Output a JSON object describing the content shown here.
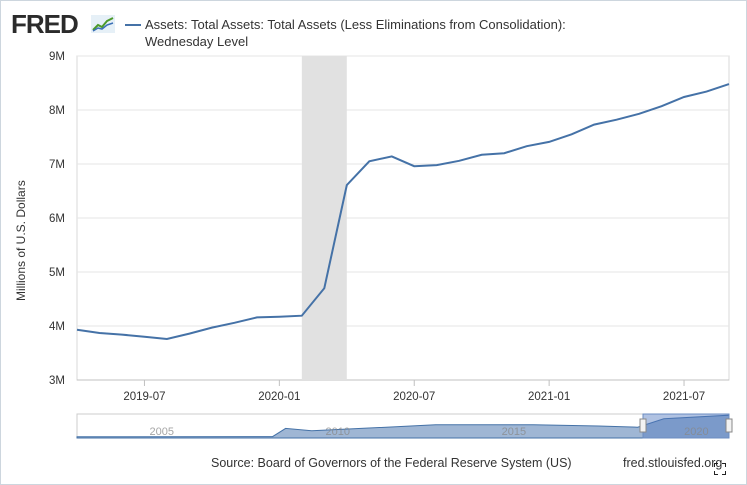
{
  "header": {
    "logo_text": "FRED",
    "series_title": "Assets: Total Assets: Total Assets (Less Eliminations from Consolidation): Wednesday Level"
  },
  "footer": {
    "source": "Source: Board of Governors of the Federal Reserve System (US)",
    "credit": "fred.stlouisfed.org"
  },
  "chart_data": {
    "type": "line",
    "title": "",
    "ylabel": "Millions of U.S. Dollars",
    "xlabel": "",
    "ylim": [
      3,
      9
    ],
    "y_unit": "M",
    "yticks": [
      "3M",
      "4M",
      "5M",
      "6M",
      "7M",
      "8M",
      "9M"
    ],
    "xticks": [
      "2019-07",
      "2020-01",
      "2020-07",
      "2021-01",
      "2021-07"
    ],
    "grid": true,
    "recession_shading": {
      "start": "2020-02",
      "end": "2020-04"
    },
    "line_color": "#4572a7",
    "series": [
      {
        "name": "Assets: Total Assets: Total Assets (Less Eliminations from Consolidation): Wednesday Level",
        "x": [
          "2019-04",
          "2019-05",
          "2019-06",
          "2019-07",
          "2019-08",
          "2019-09",
          "2019-10",
          "2019-11",
          "2019-12",
          "2020-01",
          "2020-02",
          "2020-03",
          "2020-04",
          "2020-05",
          "2020-06",
          "2020-07",
          "2020-08",
          "2020-09",
          "2020-10",
          "2020-11",
          "2020-12",
          "2021-01",
          "2021-02",
          "2021-03",
          "2021-04",
          "2021-05",
          "2021-06",
          "2021-07",
          "2021-08",
          "2021-09"
        ],
        "y": [
          3.93,
          3.87,
          3.84,
          3.8,
          3.76,
          3.86,
          3.97,
          4.06,
          4.16,
          4.17,
          4.19,
          4.7,
          6.61,
          7.05,
          7.14,
          6.96,
          6.98,
          7.06,
          7.17,
          7.2,
          7.33,
          7.41,
          7.55,
          7.73,
          7.82,
          7.93,
          8.07,
          8.24,
          8.34,
          8.48
        ]
      }
    ],
    "navigator": {
      "xticks": [
        "2005",
        "2010",
        "2015",
        "2020"
      ]
    }
  }
}
